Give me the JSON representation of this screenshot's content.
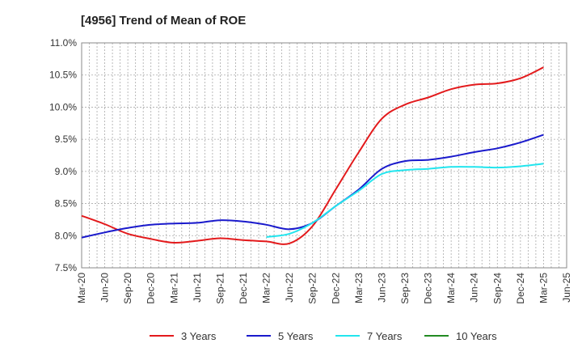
{
  "chart_data": {
    "type": "line",
    "title": "[4956]  Trend of Mean of ROE",
    "xlabel": "",
    "ylabel": "",
    "ylim": [
      7.5,
      11.0
    ],
    "yticks": [
      7.5,
      8.0,
      8.5,
      9.0,
      9.5,
      10.0,
      10.5,
      11.0
    ],
    "ytick_labels": [
      "7.5%",
      "8.0%",
      "8.5%",
      "9.0%",
      "9.5%",
      "10.0%",
      "10.5%",
      "11.0%"
    ],
    "x_categories": [
      "Mar-20",
      "Jun-20",
      "Sep-20",
      "Dec-20",
      "Mar-21",
      "Jun-21",
      "Sep-21",
      "Dec-21",
      "Mar-22",
      "Jun-22",
      "Sep-22",
      "Dec-22",
      "Mar-23",
      "Jun-23",
      "Sep-23",
      "Dec-23",
      "Mar-24",
      "Jun-24",
      "Sep-24",
      "Dec-24",
      "Mar-25",
      "Jun-25"
    ],
    "grid": true,
    "legend_position": "bottom",
    "series": [
      {
        "name": "3 Years",
        "color": "#e31a1c",
        "points": [
          [
            "Mar-20",
            8.31
          ],
          [
            "Jun-20",
            8.18
          ],
          [
            "Sep-20",
            8.03
          ],
          [
            "Dec-20",
            7.95
          ],
          [
            "Mar-21",
            7.89
          ],
          [
            "Jun-21",
            7.92
          ],
          [
            "Sep-21",
            7.96
          ],
          [
            "Dec-21",
            7.93
          ],
          [
            "Mar-22",
            7.91
          ],
          [
            "Jun-22",
            7.88
          ],
          [
            "Sep-22",
            8.15
          ],
          [
            "Dec-22",
            8.72
          ],
          [
            "Mar-23",
            9.3
          ],
          [
            "Jun-23",
            9.82
          ],
          [
            "Sep-23",
            10.04
          ],
          [
            "Dec-23",
            10.15
          ],
          [
            "Mar-24",
            10.28
          ],
          [
            "Jun-24",
            10.35
          ],
          [
            "Sep-24",
            10.37
          ],
          [
            "Dec-24",
            10.45
          ],
          [
            "Mar-25",
            10.62
          ]
        ]
      },
      {
        "name": "5 Years",
        "color": "#1a1acc",
        "points": [
          [
            "Mar-20",
            7.97
          ],
          [
            "Jun-20",
            8.05
          ],
          [
            "Sep-20",
            8.12
          ],
          [
            "Dec-20",
            8.17
          ],
          [
            "Mar-21",
            8.19
          ],
          [
            "Jun-21",
            8.2
          ],
          [
            "Sep-21",
            8.24
          ],
          [
            "Dec-21",
            8.22
          ],
          [
            "Mar-22",
            8.17
          ],
          [
            "Jun-22",
            8.1
          ],
          [
            "Sep-22",
            8.2
          ],
          [
            "Dec-22",
            8.46
          ],
          [
            "Mar-23",
            8.72
          ],
          [
            "Jun-23",
            9.04
          ],
          [
            "Sep-23",
            9.16
          ],
          [
            "Dec-23",
            9.18
          ],
          [
            "Mar-24",
            9.23
          ],
          [
            "Jun-24",
            9.3
          ],
          [
            "Sep-24",
            9.36
          ],
          [
            "Dec-24",
            9.45
          ],
          [
            "Mar-25",
            9.57
          ]
        ]
      },
      {
        "name": "7 Years",
        "color": "#22e5ee",
        "points": [
          [
            "Mar-22",
            7.98
          ],
          [
            "Jun-22",
            8.03
          ],
          [
            "Sep-22",
            8.2
          ],
          [
            "Dec-22",
            8.46
          ],
          [
            "Mar-23",
            8.7
          ],
          [
            "Jun-23",
            8.96
          ],
          [
            "Sep-23",
            9.02
          ],
          [
            "Dec-23",
            9.04
          ],
          [
            "Mar-24",
            9.07
          ],
          [
            "Jun-24",
            9.07
          ],
          [
            "Sep-24",
            9.06
          ],
          [
            "Dec-24",
            9.08
          ],
          [
            "Mar-25",
            9.12
          ]
        ]
      },
      {
        "name": "10 Years",
        "color": "#228b22",
        "points": []
      }
    ]
  }
}
